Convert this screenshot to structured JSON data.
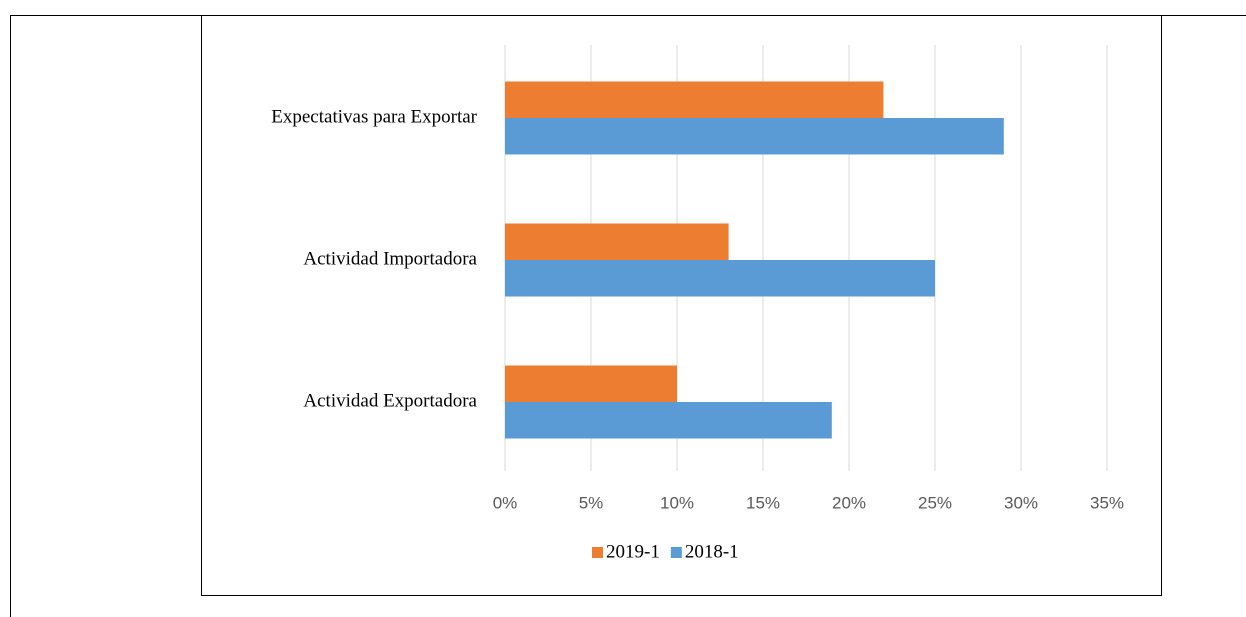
{
  "chart_data": {
    "type": "bar",
    "orientation": "horizontal",
    "categories": [
      "Expectativas para Exportar",
      "Actividad Importadora",
      "Actividad Exportadora"
    ],
    "series": [
      {
        "name": "2019-1",
        "color": "#ed7d31",
        "values": [
          22,
          13,
          10
        ]
      },
      {
        "name": "2018-1",
        "color": "#5b9bd5",
        "values": [
          29,
          25,
          19
        ]
      }
    ],
    "xlim": [
      0,
      35
    ],
    "xticks": [
      {
        "value": 0,
        "label": "0%"
      },
      {
        "value": 5,
        "label": "5%"
      },
      {
        "value": 10,
        "label": "10%"
      },
      {
        "value": 15,
        "label": "15%"
      },
      {
        "value": 20,
        "label": "20%"
      },
      {
        "value": 25,
        "label": "25%"
      },
      {
        "value": 30,
        "label": "30%"
      },
      {
        "value": 35,
        "label": "35%"
      }
    ],
    "grid": true,
    "legend": "bottom"
  }
}
